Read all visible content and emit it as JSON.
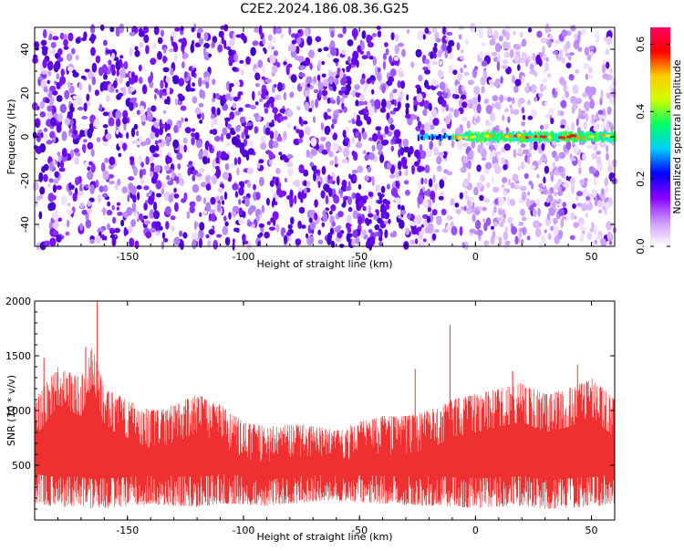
{
  "title": "C2E2.2024.186.08.36.G25",
  "chart_data": [
    {
      "type": "heatmap",
      "xlabel": "Height of straight line (km)",
      "ylabel": "Frequency (Hz)",
      "xlim": [
        -190,
        60
      ],
      "ylim": [
        -50,
        50
      ],
      "xticks": [
        -150,
        -100,
        -50,
        0,
        50
      ],
      "yticks": [
        -40,
        -20,
        0,
        20,
        40
      ],
      "colorbar": {
        "label": "Normalized spectral amplitude",
        "range": [
          0.0,
          0.65
        ],
        "ticks": [
          0.0,
          0.2,
          0.4,
          0.6
        ],
        "colors": [
          "#ffffff",
          "#cc99ff",
          "#8800ff",
          "#0000ff",
          "#00ccff",
          "#00ff66",
          "#ccff00",
          "#ffcc00",
          "#ff0000",
          "#ff0066"
        ]
      },
      "features": {
        "signal_band_frequency_hz": 0,
        "signal_band_start_km": -25,
        "signal_band_end_km": 60,
        "peak_amplitude_region_km": [
          0,
          50
        ],
        "noise_strong_region_km": [
          -190,
          -25
        ],
        "noise_weak_region_km": [
          -15,
          60
        ]
      }
    },
    {
      "type": "line",
      "xlabel": "Height of straight line (km)",
      "ylabel": "SNR (10 * v/v)",
      "xlim": [
        -190,
        60
      ],
      "ylim": [
        0,
        2000
      ],
      "xticks": [
        -150,
        -100,
        -50,
        0,
        50
      ],
      "yticks": [
        500,
        1000,
        1500,
        2000
      ],
      "color": "#ee3030",
      "grid": false,
      "envelope": {
        "x": [
          -190,
          -180,
          -170,
          -165,
          -160,
          -150,
          -140,
          -130,
          -120,
          -110,
          -100,
          -90,
          -80,
          -70,
          -60,
          -50,
          -40,
          -30,
          -20,
          -10,
          0,
          10,
          20,
          30,
          40,
          50,
          60
        ],
        "y_low": [
          150,
          120,
          130,
          100,
          110,
          120,
          140,
          130,
          120,
          150,
          140,
          130,
          150,
          170,
          180,
          160,
          150,
          140,
          130,
          120,
          110,
          120,
          130,
          100,
          110,
          120,
          150
        ],
        "y_high": [
          1100,
          1400,
          1300,
          1600,
          1200,
          1100,
          1000,
          1050,
          1150,
          1050,
          900,
          850,
          880,
          860,
          820,
          900,
          950,
          950,
          1000,
          1100,
          1150,
          1200,
          1250,
          1150,
          1200,
          1300,
          1100
        ],
        "spikes": [
          {
            "x": -163,
            "y": 2000
          },
          {
            "x": -168,
            "y": 1580
          },
          {
            "x": -186,
            "y": 1480
          },
          {
            "x": -11,
            "y": 1780
          },
          {
            "x": -26,
            "y": 1380
          },
          {
            "x": 44,
            "y": 1420
          },
          {
            "x": 16,
            "y": 1360
          }
        ]
      }
    }
  ]
}
